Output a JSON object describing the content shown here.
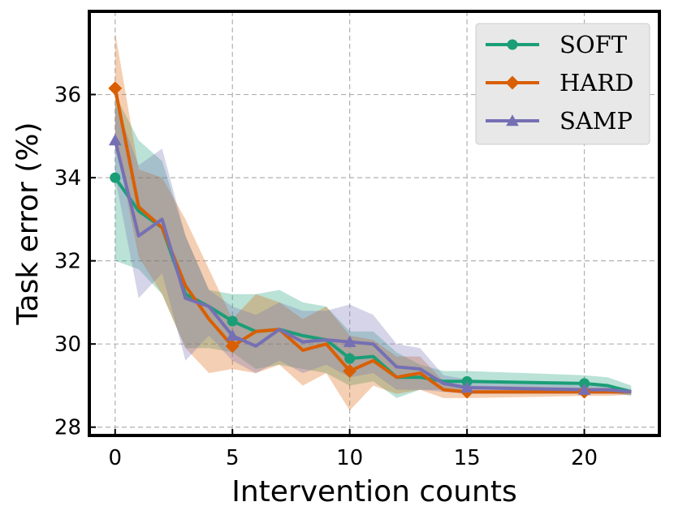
{
  "chart_data": {
    "type": "line",
    "title": "",
    "xlabel": "Intervention counts",
    "ylabel": "Task error (%)",
    "xlim": [
      -1.1,
      23.2
    ],
    "ylim": [
      27.8,
      38.0
    ],
    "xticks": [
      0,
      5,
      10,
      15,
      20
    ],
    "yticks": [
      28,
      30,
      32,
      34,
      36
    ],
    "x": [
      0,
      1,
      2,
      3,
      4,
      5,
      6,
      7,
      8,
      9,
      10,
      11,
      12,
      13,
      14,
      15,
      20,
      21,
      22
    ],
    "marker_x": [
      0,
      5,
      10,
      15,
      20
    ],
    "grid": true,
    "legend_position": "top-right",
    "series": [
      {
        "name": "SOFT",
        "color": "#1b9e77",
        "marker": "circle",
        "values": [
          34.0,
          33.2,
          32.8,
          31.2,
          30.9,
          30.55,
          30.3,
          30.35,
          30.2,
          30.1,
          29.65,
          29.7,
          29.2,
          29.2,
          29.1,
          29.1,
          29.05,
          29.0,
          28.85
        ],
        "lower": [
          32.0,
          31.8,
          31.2,
          29.9,
          29.9,
          29.8,
          29.4,
          29.5,
          29.4,
          29.3,
          29.0,
          29.1,
          28.7,
          28.9,
          28.9,
          28.9,
          28.9,
          28.85,
          28.75
        ],
        "upper": [
          36.0,
          34.9,
          34.4,
          32.6,
          31.3,
          31.2,
          31.2,
          31.3,
          31.0,
          30.9,
          30.3,
          30.3,
          29.8,
          29.5,
          29.35,
          29.35,
          29.25,
          29.2,
          29.0
        ]
      },
      {
        "name": "HARD",
        "color": "#d95f02",
        "marker": "diamond",
        "values": [
          36.15,
          33.3,
          32.8,
          31.4,
          30.6,
          29.95,
          30.3,
          30.35,
          29.85,
          30.0,
          29.35,
          29.6,
          29.2,
          29.3,
          28.9,
          28.85,
          28.85,
          28.85,
          28.85
        ],
        "lower": [
          34.9,
          32.1,
          31.2,
          29.9,
          29.3,
          29.4,
          29.3,
          29.5,
          29.0,
          29.3,
          28.4,
          29.0,
          28.8,
          28.9,
          28.7,
          28.7,
          28.75,
          28.75,
          28.78
        ],
        "upper": [
          37.5,
          34.2,
          34.0,
          33.0,
          31.8,
          30.6,
          31.2,
          31.0,
          30.6,
          30.9,
          30.2,
          30.1,
          29.7,
          29.7,
          29.1,
          29.0,
          28.95,
          28.95,
          28.9
        ]
      },
      {
        "name": "SAMP",
        "color": "#7570b3",
        "marker": "triangle",
        "values": [
          34.9,
          32.6,
          33.0,
          31.1,
          30.9,
          30.2,
          29.95,
          30.35,
          30.05,
          30.1,
          30.05,
          30.0,
          29.45,
          29.4,
          29.05,
          28.95,
          28.9,
          28.9,
          28.85
        ],
        "lower": [
          34.0,
          31.1,
          31.7,
          29.6,
          30.2,
          29.6,
          29.3,
          29.6,
          29.3,
          29.5,
          29.2,
          29.3,
          28.9,
          28.9,
          28.85,
          28.8,
          28.8,
          28.8,
          28.78
        ],
        "upper": [
          35.8,
          34.3,
          34.7,
          32.6,
          31.3,
          30.9,
          30.7,
          31.0,
          30.8,
          30.8,
          30.95,
          30.7,
          30.0,
          29.9,
          29.25,
          29.15,
          29.0,
          29.0,
          28.92
        ]
      }
    ]
  }
}
